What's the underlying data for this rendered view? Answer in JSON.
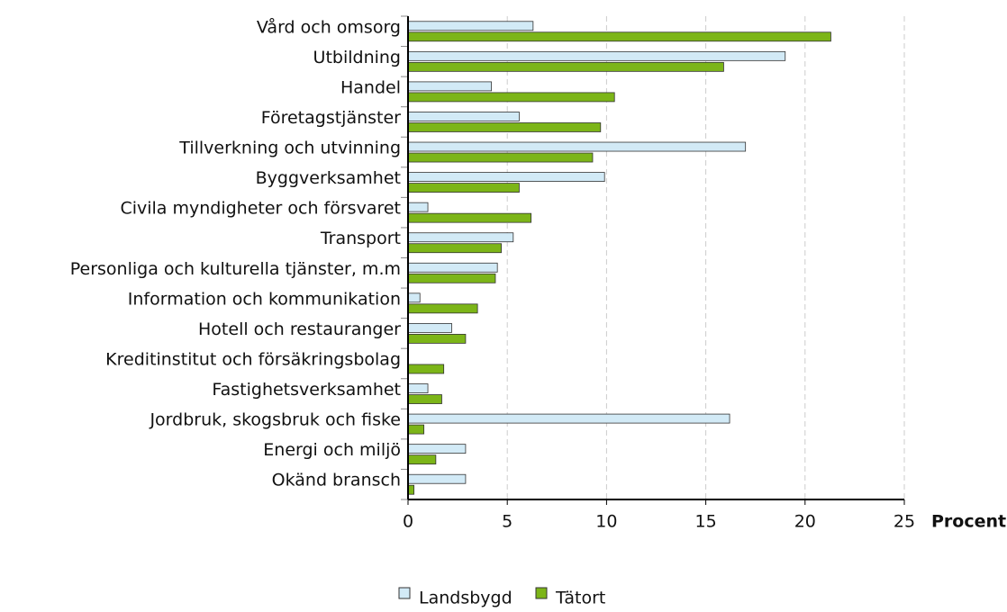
{
  "chart_data": {
    "type": "hbar",
    "x_label": "Procent",
    "categories": [
      "Vård och omsorg",
      "Utbildning",
      "Handel",
      "Företagstjänster",
      "Tillverkning och utvinning",
      "Byggverksamhet",
      "Civila myndigheter och försvaret",
      "Transport",
      "Personliga och kulturella tjänster, m.m",
      "Information och kommunikation",
      "Hotell och restauranger",
      "Kreditinstitut och försäkringsbolag",
      "Fastighetsverksamhet",
      "Jordbruk, skogsbruk och fiske",
      "Energi och miljö",
      "Okänd bransch"
    ],
    "series": [
      {
        "name": "Landsbygd",
        "color": "#d2eaf6",
        "values": [
          6.3,
          19.0,
          4.2,
          5.6,
          17.0,
          9.9,
          1.0,
          5.3,
          4.5,
          0.6,
          2.2,
          0,
          1.0,
          16.2,
          2.9,
          2.9
        ]
      },
      {
        "name": "Tätort",
        "color": "#7cb518",
        "values": [
          21.3,
          15.9,
          10.4,
          9.7,
          9.3,
          5.6,
          6.2,
          4.7,
          4.4,
          3.5,
          2.9,
          1.8,
          1.7,
          0.8,
          1.4,
          0.3
        ]
      }
    ],
    "xlim": [
      0,
      25
    ],
    "xticks": [
      0,
      5,
      10,
      15,
      20,
      25
    ],
    "grid": true
  }
}
